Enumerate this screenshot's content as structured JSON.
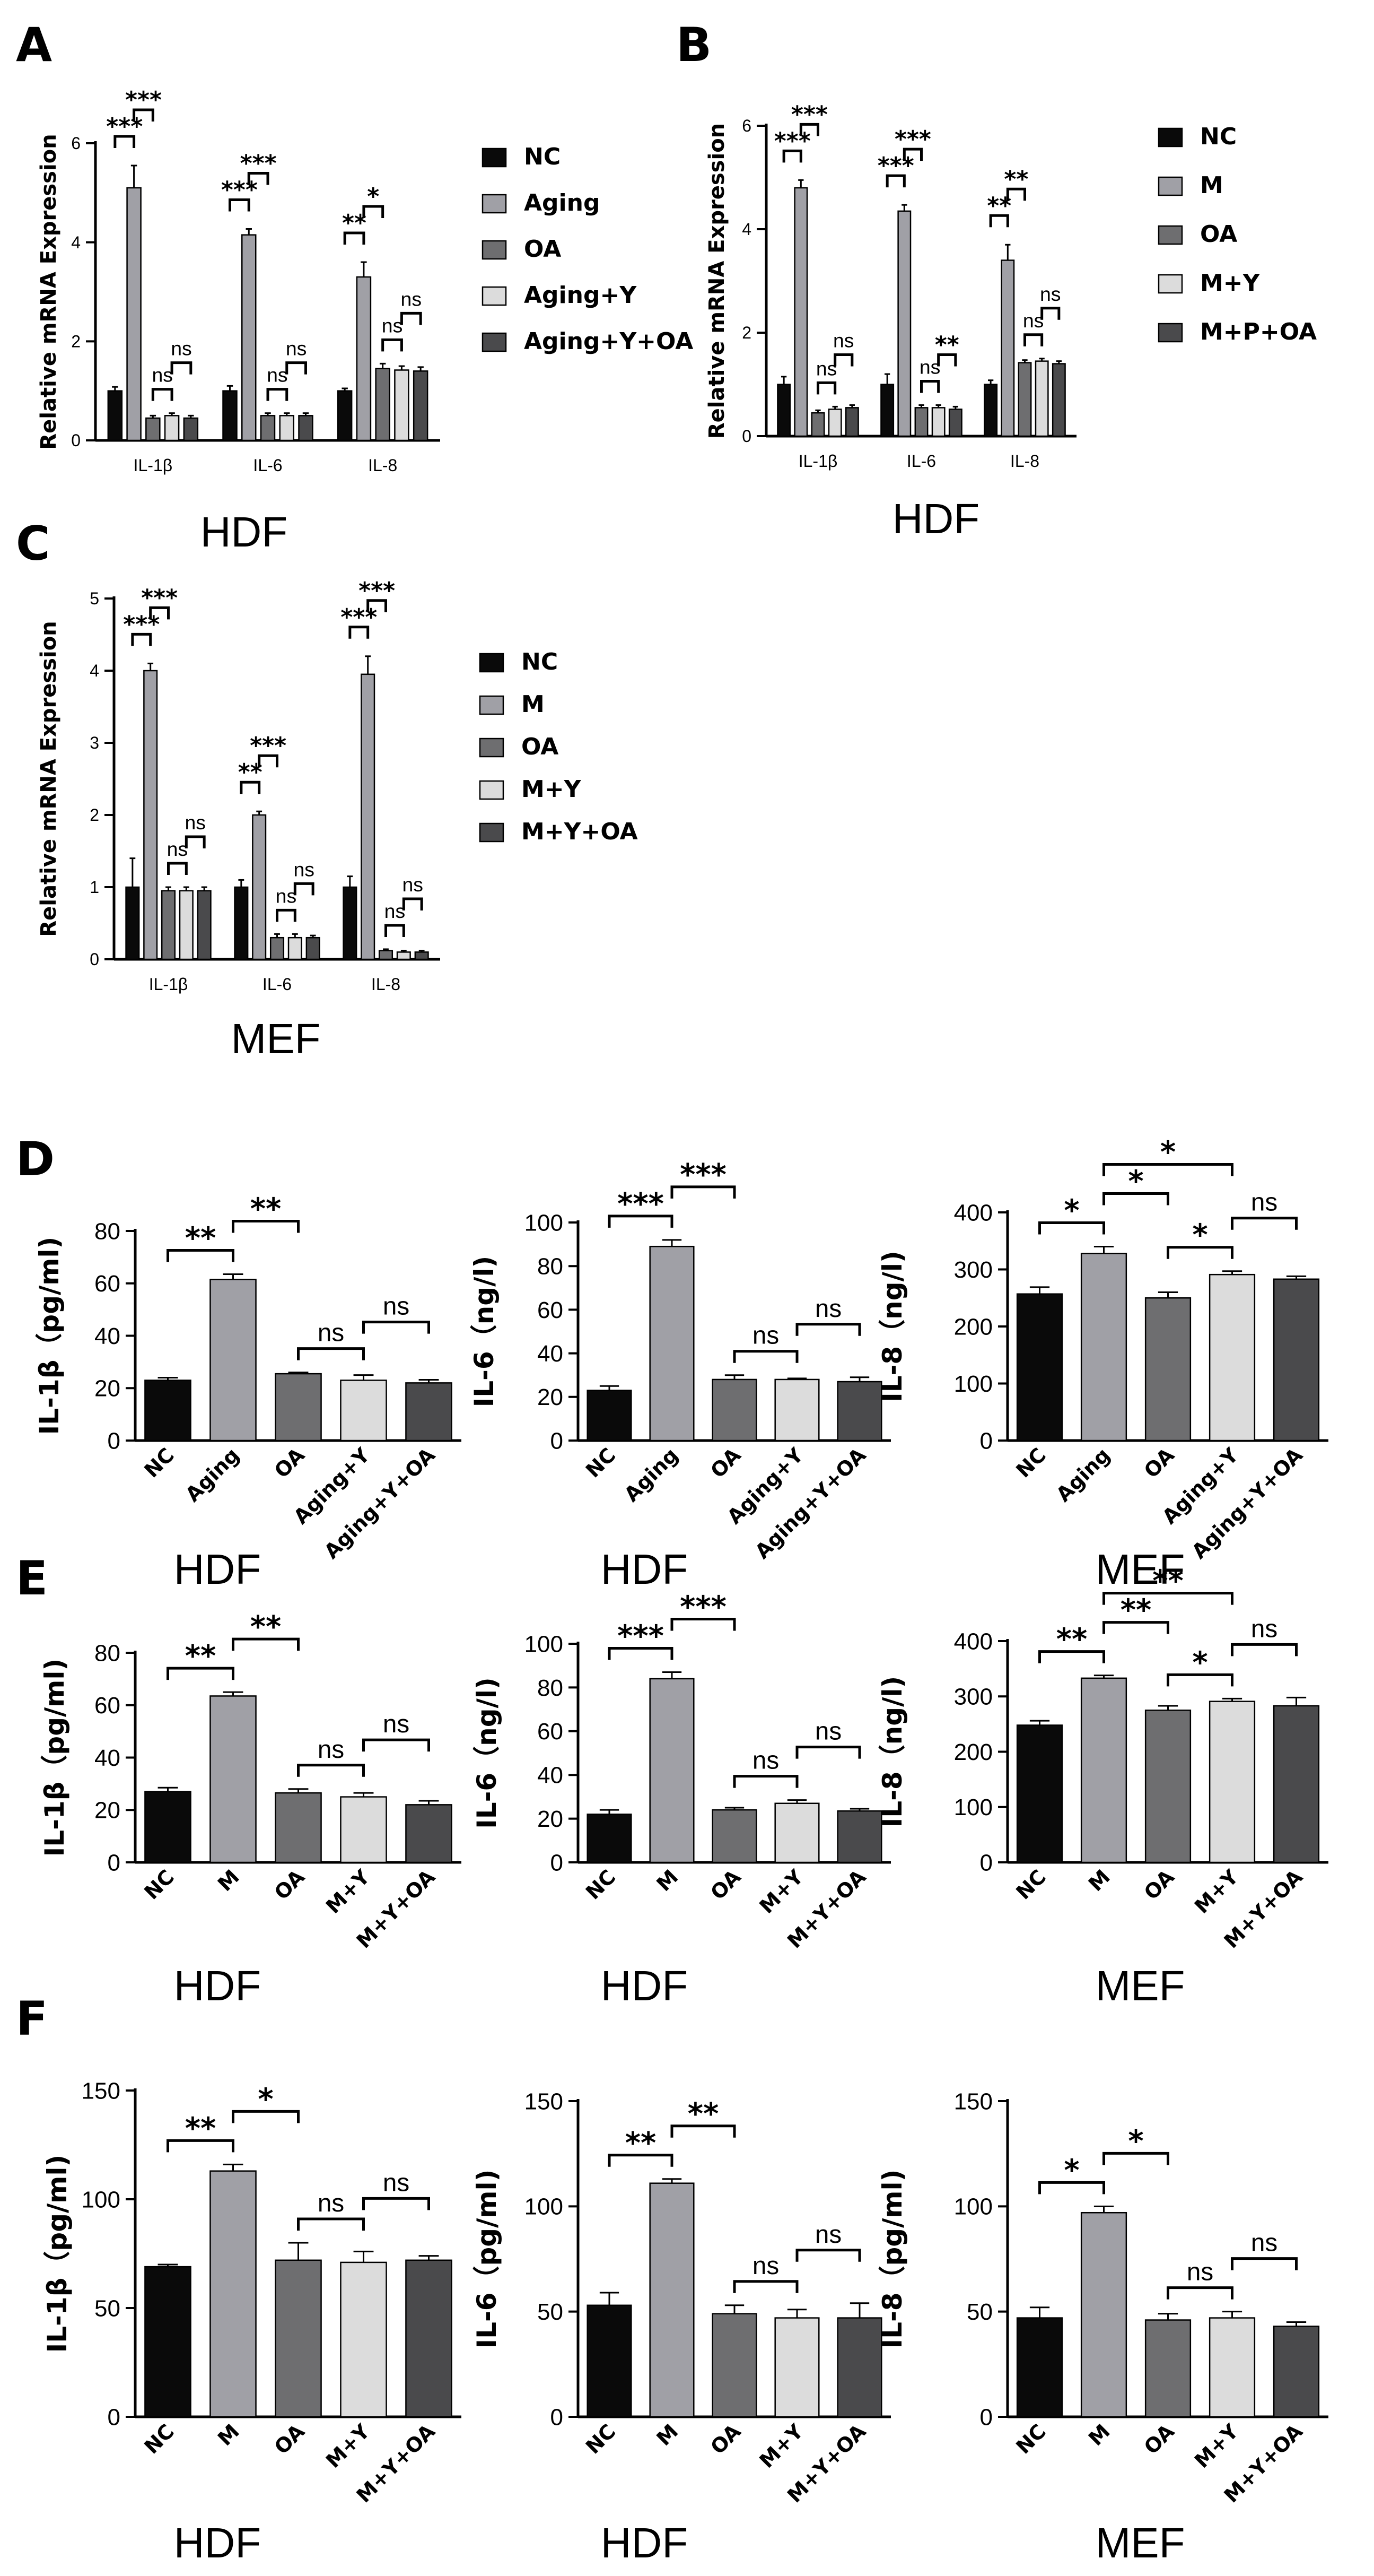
{
  "colors": {
    "NC": "#0a0a0a",
    "G2": "#a0a0a6",
    "G3": "#6e6e70",
    "G4": "#dcdcdc",
    "G5": "#4a4a4c",
    "axis": "#000000"
  },
  "chart_data": [
    {
      "id": "A",
      "type": "bar",
      "letter": "A",
      "ylabel": "Relative mRNA Expression",
      "caption": "HDF",
      "categories": [
        "IL-1β",
        "IL-6",
        "IL-8"
      ],
      "ylim": [
        0,
        6
      ],
      "yticks": [
        "0",
        "2",
        "4",
        "6"
      ],
      "legend": [
        "NC",
        "Aging",
        "OA",
        "Aging+Y",
        "Aging+Y+OA"
      ],
      "values": [
        [
          1.0,
          5.1,
          0.45,
          0.5,
          0.45
        ],
        [
          1.0,
          4.15,
          0.5,
          0.5,
          0.5
        ],
        [
          1.0,
          3.3,
          1.45,
          1.42,
          1.4
        ]
      ],
      "errors": [
        [
          0.08,
          0.45,
          0.05,
          0.05,
          0.05
        ],
        [
          0.1,
          0.12,
          0.05,
          0.05,
          0.05
        ],
        [
          0.05,
          0.3,
          0.1,
          0.08,
          0.08
        ]
      ],
      "sig": [
        [
          {
            "a": 0,
            "b": 1,
            "t": "***"
          },
          {
            "a": 1,
            "b": 2,
            "t": "***"
          },
          {
            "a": 2,
            "b": 3,
            "t": "ns"
          },
          {
            "a": 3,
            "b": 4,
            "t": "ns"
          }
        ],
        [
          {
            "a": 0,
            "b": 1,
            "t": "***"
          },
          {
            "a": 1,
            "b": 2,
            "t": "***"
          },
          {
            "a": 2,
            "b": 3,
            "t": "ns"
          },
          {
            "a": 3,
            "b": 4,
            "t": "ns"
          }
        ],
        [
          {
            "a": 0,
            "b": 1,
            "t": "**"
          },
          {
            "a": 1,
            "b": 2,
            "t": "*"
          },
          {
            "a": 2,
            "b": 3,
            "t": "ns"
          },
          {
            "a": 3,
            "b": 4,
            "t": "ns"
          }
        ]
      ]
    },
    {
      "id": "B",
      "type": "bar",
      "letter": "B",
      "ylabel": "Relative mRNA Expression",
      "caption": "HDF",
      "categories": [
        "IL-1β",
        "IL-6",
        "IL-8"
      ],
      "ylim": [
        0,
        6
      ],
      "yticks": [
        "0",
        "2",
        "4",
        "6"
      ],
      "legend": [
        "NC",
        "M",
        "OA",
        "M+Y",
        "M+P+OA"
      ],
      "values": [
        [
          1.0,
          4.8,
          0.45,
          0.52,
          0.55
        ],
        [
          1.0,
          4.35,
          0.55,
          0.55,
          0.52
        ],
        [
          1.0,
          3.4,
          1.42,
          1.45,
          1.4
        ]
      ],
      "errors": [
        [
          0.15,
          0.15,
          0.05,
          0.05,
          0.05
        ],
        [
          0.2,
          0.12,
          0.05,
          0.05,
          0.05
        ],
        [
          0.08,
          0.3,
          0.05,
          0.05,
          0.05
        ]
      ],
      "sig": [
        [
          {
            "a": 0,
            "b": 1,
            "t": "***"
          },
          {
            "a": 1,
            "b": 2,
            "t": "***"
          },
          {
            "a": 2,
            "b": 3,
            "t": "ns"
          },
          {
            "a": 3,
            "b": 4,
            "t": "ns"
          }
        ],
        [
          {
            "a": 0,
            "b": 1,
            "t": "***"
          },
          {
            "a": 1,
            "b": 2,
            "t": "***"
          },
          {
            "a": 2,
            "b": 3,
            "t": "ns"
          },
          {
            "a": 3,
            "b": 4,
            "t": "**"
          }
        ],
        [
          {
            "a": 0,
            "b": 1,
            "t": "**"
          },
          {
            "a": 1,
            "b": 2,
            "t": "**"
          },
          {
            "a": 2,
            "b": 3,
            "t": "ns"
          },
          {
            "a": 3,
            "b": 4,
            "t": "ns"
          }
        ]
      ]
    },
    {
      "id": "C",
      "type": "bar",
      "letter": "C",
      "ylabel": "Relative mRNA Expression",
      "caption": "MEF",
      "categories": [
        "IL-1β",
        "IL-6",
        "IL-8"
      ],
      "ylim": [
        0,
        5
      ],
      "yticks": [
        "0",
        "1",
        "2",
        "3",
        "4",
        "5"
      ],
      "legend": [
        "NC",
        "M",
        "OA",
        "M+Y",
        "M+Y+OA"
      ],
      "values": [
        [
          1.0,
          4.0,
          0.95,
          0.95,
          0.95
        ],
        [
          1.0,
          2.0,
          0.3,
          0.3,
          0.3
        ],
        [
          1.0,
          3.95,
          0.12,
          0.1,
          0.1
        ]
      ],
      "errors": [
        [
          0.4,
          0.1,
          0.05,
          0.05,
          0.05
        ],
        [
          0.1,
          0.05,
          0.05,
          0.05,
          0.03
        ],
        [
          0.15,
          0.25,
          0.02,
          0.02,
          0.02
        ]
      ],
      "sig": [
        [
          {
            "a": 0,
            "b": 1,
            "t": "***"
          },
          {
            "a": 1,
            "b": 2,
            "t": "***"
          },
          {
            "a": 2,
            "b": 3,
            "t": "ns"
          },
          {
            "a": 3,
            "b": 4,
            "t": "ns"
          }
        ],
        [
          {
            "a": 0,
            "b": 1,
            "t": "**"
          },
          {
            "a": 1,
            "b": 2,
            "t": "***"
          },
          {
            "a": 2,
            "b": 3,
            "t": "ns"
          },
          {
            "a": 3,
            "b": 4,
            "t": "ns"
          }
        ],
        [
          {
            "a": 0,
            "b": 1,
            "t": "***"
          },
          {
            "a": 1,
            "b": 2,
            "t": "***"
          },
          {
            "a": 2,
            "b": 3,
            "t": "ns"
          },
          {
            "a": 3,
            "b": 4,
            "t": "ns"
          }
        ]
      ]
    },
    {
      "id": "D1",
      "type": "bar",
      "letter": "D",
      "ylabel": "IL-1β（pg/ml)",
      "caption": "HDF",
      "categories": [
        "NC",
        "Aging",
        "OA",
        "Aging+Y",
        "Aging+Y+OA"
      ],
      "ylim": [
        0,
        80
      ],
      "yticks": [
        "0",
        "20",
        "40",
        "60",
        "80"
      ],
      "values": [
        23,
        61.5,
        25.5,
        23,
        22
      ],
      "errors": [
        1,
        2,
        0.5,
        2,
        1.2
      ],
      "sig": [
        {
          "a": 0,
          "b": 1,
          "t": "**",
          "lvl": 0
        },
        {
          "a": 1,
          "b": 2,
          "t": "**",
          "lvl": 1
        },
        {
          "a": 2,
          "b": 3,
          "t": "ns",
          "lvl": 0
        },
        {
          "a": 3,
          "b": 4,
          "t": "ns",
          "lvl": 1
        }
      ]
    },
    {
      "id": "D2",
      "type": "bar",
      "ylabel": "IL-6（ng/l)",
      "caption": "HDF",
      "categories": [
        "NC",
        "Aging",
        "OA",
        "Aging+Y",
        "Aging+Y+OA"
      ],
      "ylim": [
        0,
        100
      ],
      "yticks": [
        "0",
        "20",
        "40",
        "60",
        "80",
        "100"
      ],
      "values": [
        23,
        89,
        28,
        28,
        27
      ],
      "errors": [
        2,
        3,
        2,
        0.5,
        2
      ],
      "sig": [
        {
          "a": 0,
          "b": 1,
          "t": "***",
          "lvl": 0
        },
        {
          "a": 1,
          "b": 2,
          "t": "***",
          "lvl": 1
        },
        {
          "a": 2,
          "b": 3,
          "t": "ns",
          "lvl": 0
        },
        {
          "a": 3,
          "b": 4,
          "t": "ns",
          "lvl": 1
        }
      ]
    },
    {
      "id": "D3",
      "type": "bar",
      "ylabel": "IL-8（ng/l)",
      "caption": "MEF",
      "categories": [
        "NC",
        "Aging",
        "OA",
        "Aging+Y",
        "Aging+Y+OA"
      ],
      "ylim": [
        0,
        400
      ],
      "yticks": [
        "0",
        "100",
        "200",
        "300",
        "400"
      ],
      "values": [
        257,
        328,
        250,
        291,
        283
      ],
      "errors": [
        12,
        12,
        10,
        6,
        5
      ],
      "sig": [
        {
          "a": 0,
          "b": 1,
          "t": "*",
          "lvl": 0
        },
        {
          "a": 1,
          "b": 2,
          "t": "*",
          "lvl": 1
        },
        {
          "a": 1,
          "b": 3,
          "t": "*",
          "lvl": 2
        },
        {
          "a": 2,
          "b": 3,
          "t": "*",
          "lvl": 0
        },
        {
          "a": 3,
          "b": 4,
          "t": "ns",
          "lvl": 1
        }
      ]
    },
    {
      "id": "E1",
      "type": "bar",
      "letter": "E",
      "ylabel": "IL-1β（pg/ml)",
      "caption": "HDF",
      "categories": [
        "NC",
        "M",
        "OA",
        "M+Y",
        "M+Y+OA"
      ],
      "ylim": [
        0,
        80
      ],
      "yticks": [
        "0",
        "20",
        "40",
        "60",
        "80"
      ],
      "values": [
        27,
        63.5,
        26.5,
        25,
        22
      ],
      "errors": [
        1.5,
        1.5,
        1.5,
        1.5,
        1.5
      ],
      "sig": [
        {
          "a": 0,
          "b": 1,
          "t": "**",
          "lvl": 0
        },
        {
          "a": 1,
          "b": 2,
          "t": "**",
          "lvl": 1
        },
        {
          "a": 2,
          "b": 3,
          "t": "ns",
          "lvl": 0
        },
        {
          "a": 3,
          "b": 4,
          "t": "ns",
          "lvl": 1
        }
      ]
    },
    {
      "id": "E2",
      "type": "bar",
      "ylabel": "IL-6（ng/l)",
      "caption": "HDF",
      "categories": [
        "NC",
        "M",
        "OA",
        "M+Y",
        "M+Y+OA"
      ],
      "ylim": [
        0,
        100
      ],
      "yticks": [
        "0",
        "20",
        "40",
        "60",
        "80",
        "100"
      ],
      "values": [
        22,
        84,
        24,
        27,
        23.5
      ],
      "errors": [
        2,
        3,
        1,
        1.5,
        1
      ],
      "sig": [
        {
          "a": 0,
          "b": 1,
          "t": "***",
          "lvl": 0
        },
        {
          "a": 1,
          "b": 2,
          "t": "***",
          "lvl": 1
        },
        {
          "a": 2,
          "b": 3,
          "t": "ns",
          "lvl": 0
        },
        {
          "a": 3,
          "b": 4,
          "t": "ns",
          "lvl": 1
        }
      ]
    },
    {
      "id": "E3",
      "type": "bar",
      "ylabel": "IL-8（ng/l)",
      "caption": "MEF",
      "categories": [
        "NC",
        "M",
        "OA",
        "M+Y",
        "M+Y+OA"
      ],
      "ylim": [
        0,
        400
      ],
      "yticks": [
        "0",
        "100",
        "200",
        "300",
        "400"
      ],
      "values": [
        248,
        333,
        275,
        291,
        283
      ],
      "errors": [
        8,
        5,
        8,
        5,
        15
      ],
      "sig": [
        {
          "a": 0,
          "b": 1,
          "t": "**",
          "lvl": 0
        },
        {
          "a": 1,
          "b": 2,
          "t": "**",
          "lvl": 1
        },
        {
          "a": 1,
          "b": 3,
          "t": "**",
          "lvl": 2
        },
        {
          "a": 2,
          "b": 3,
          "t": "*",
          "lvl": 0
        },
        {
          "a": 3,
          "b": 4,
          "t": "ns",
          "lvl": 1
        }
      ]
    },
    {
      "id": "F1",
      "type": "bar",
      "letter": "F",
      "ylabel": "IL-1β（pg/ml)",
      "caption": "HDF",
      "categories": [
        "NC",
        "M",
        "OA",
        "M+Y",
        "M+Y+OA"
      ],
      "ylim": [
        0,
        150
      ],
      "yticks": [
        "0",
        "50",
        "100",
        "150"
      ],
      "values": [
        69,
        113,
        72,
        71,
        72
      ],
      "errors": [
        1,
        3,
        8,
        5,
        2
      ],
      "sig": [
        {
          "a": 0,
          "b": 1,
          "t": "**",
          "lvl": 0
        },
        {
          "a": 1,
          "b": 2,
          "t": "*",
          "lvl": 1
        },
        {
          "a": 2,
          "b": 3,
          "t": "ns",
          "lvl": 0
        },
        {
          "a": 3,
          "b": 4,
          "t": "ns",
          "lvl": 1
        }
      ]
    },
    {
      "id": "F2",
      "type": "bar",
      "ylabel": "IL-6（pg/ml)",
      "caption": "HDF",
      "categories": [
        "NC",
        "M",
        "OA",
        "M+Y",
        "M+Y+OA"
      ],
      "ylim": [
        0,
        150
      ],
      "yticks": [
        "0",
        "50",
        "100",
        "150"
      ],
      "values": [
        53,
        111,
        49,
        47,
        47
      ],
      "errors": [
        6,
        2,
        4,
        4,
        7
      ],
      "sig": [
        {
          "a": 0,
          "b": 1,
          "t": "**",
          "lvl": 0
        },
        {
          "a": 1,
          "b": 2,
          "t": "**",
          "lvl": 1
        },
        {
          "a": 2,
          "b": 3,
          "t": "ns",
          "lvl": 0
        },
        {
          "a": 3,
          "b": 4,
          "t": "ns",
          "lvl": 1
        }
      ]
    },
    {
      "id": "F3",
      "type": "bar",
      "ylabel": "IL-8（pg/ml)",
      "caption": "MEF",
      "categories": [
        "NC",
        "M",
        "OA",
        "M+Y",
        "M+Y+OA"
      ],
      "ylim": [
        0,
        150
      ],
      "yticks": [
        "0",
        "50",
        "100",
        "150"
      ],
      "values": [
        47,
        97,
        46,
        47,
        43
      ],
      "errors": [
        5,
        3,
        3,
        3,
        2
      ],
      "sig": [
        {
          "a": 0,
          "b": 1,
          "t": "*",
          "lvl": 0
        },
        {
          "a": 1,
          "b": 2,
          "t": "*",
          "lvl": 1
        },
        {
          "a": 2,
          "b": 3,
          "t": "ns",
          "lvl": 0
        },
        {
          "a": 3,
          "b": 4,
          "t": "ns",
          "lvl": 1
        }
      ]
    }
  ]
}
